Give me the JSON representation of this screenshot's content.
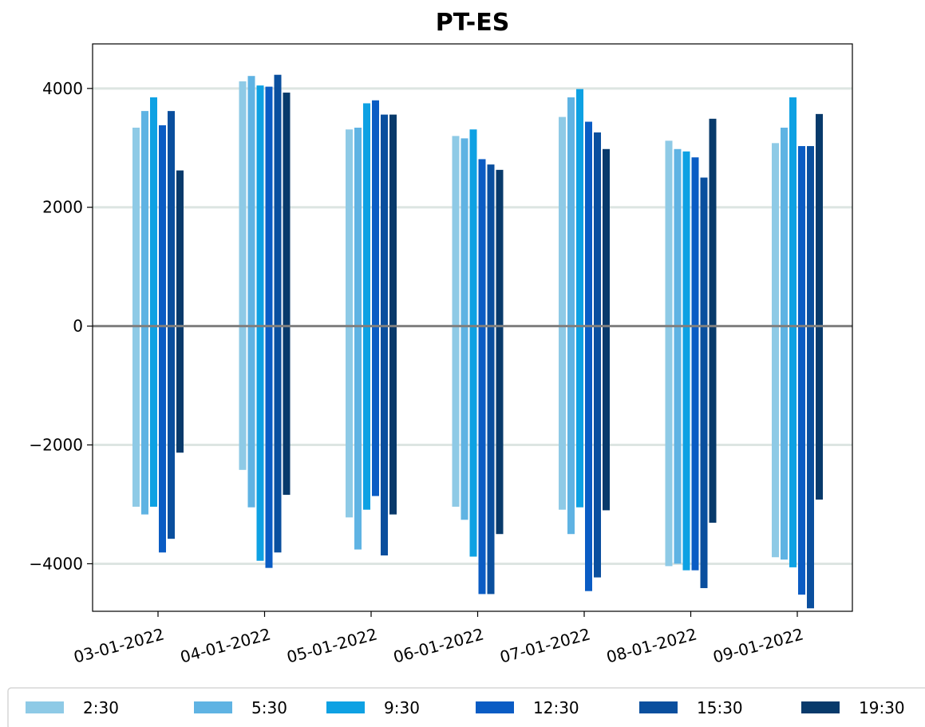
{
  "chart_data": {
    "type": "bar",
    "title": "PT-ES",
    "xlabel": "",
    "ylabel": "",
    "ylim": [
      -4800,
      4750
    ],
    "yticks": [
      4000,
      2000,
      0,
      -2000,
      -4000
    ],
    "ytick_labels": [
      "4000",
      "2000",
      "0",
      "−2000",
      "−4000"
    ],
    "categories": [
      "03-01-2022",
      "04-01-2022",
      "05-01-2022",
      "06-01-2022",
      "07-01-2022",
      "08-01-2022",
      "09-01-2022"
    ],
    "grid": "horizontal",
    "legend_position": "bottom",
    "series": [
      {
        "name": "2:30",
        "color": "#8ecae6",
        "positive": [
          3340,
          4120,
          3310,
          3200,
          3520,
          3120,
          3080
        ],
        "negative": [
          -3040,
          -2420,
          -3220,
          -3040,
          -3090,
          -4040,
          -3890
        ]
      },
      {
        "name": "5:30",
        "color": "#5fb3e3",
        "positive": [
          3620,
          4210,
          3340,
          3160,
          3850,
          2980,
          3340
        ],
        "negative": [
          -3170,
          -3050,
          -3760,
          -3260,
          -3500,
          -4000,
          -3930
        ]
      },
      {
        "name": "9:30",
        "color": "#0ea1e3",
        "positive": [
          3850,
          4050,
          3750,
          3310,
          3990,
          2940,
          3850
        ],
        "negative": [
          -3040,
          -3950,
          -3090,
          -3880,
          -3050,
          -4110,
          -4060
        ]
      },
      {
        "name": "12:30",
        "color": "#0a5cc4",
        "positive": [
          3380,
          4030,
          3800,
          2810,
          3440,
          2840,
          3030
        ],
        "negative": [
          -3810,
          -4070,
          -2860,
          -4510,
          -4460,
          -4110,
          -4520
        ]
      },
      {
        "name": "15:30",
        "color": "#0a4f9e",
        "positive": [
          3620,
          4230,
          3560,
          2720,
          3260,
          2500,
          3030
        ],
        "negative": [
          -3580,
          -3810,
          -3860,
          -4510,
          -4230,
          -4410,
          -4750
        ]
      },
      {
        "name": "19:30",
        "color": "#083a6b",
        "positive": [
          2620,
          3930,
          3560,
          2630,
          2980,
          3490,
          3570
        ],
        "negative": [
          -2130,
          -2840,
          -3170,
          -3500,
          -3100,
          -3310,
          -2920
        ]
      }
    ]
  }
}
